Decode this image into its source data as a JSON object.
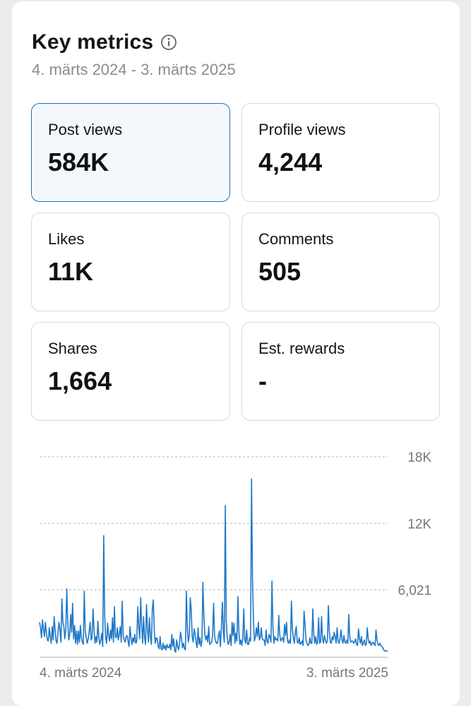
{
  "header": {
    "title": "Key metrics",
    "info_icon": "info-circle-icon",
    "date_range": "4. märts 2024 - 3. märts 2025"
  },
  "metrics": [
    {
      "label": "Post views",
      "value": "584K",
      "selected": true
    },
    {
      "label": "Profile views",
      "value": "4,244",
      "selected": false
    },
    {
      "label": "Likes",
      "value": "11K",
      "selected": false
    },
    {
      "label": "Comments",
      "value": "505",
      "selected": false
    },
    {
      "label": "Shares",
      "value": "1,664",
      "selected": false
    },
    {
      "label": "Est. rewards",
      "value": "-",
      "selected": false
    }
  ],
  "colors": {
    "accent": "#2a6fb3",
    "line": "#1f78c8",
    "selected_bg": "#f3f8fd"
  },
  "chart_data": {
    "type": "line",
    "title": "",
    "xlabel": "",
    "ylabel": "",
    "x_start_label": "4. märts 2024",
    "x_end_label": "3. märts 2025",
    "y_ticks": [
      {
        "value": 18000,
        "label": "18K"
      },
      {
        "value": 12000,
        "label": "12K"
      },
      {
        "value": 6021,
        "label": "6,021"
      }
    ],
    "ylim": [
      0,
      18000
    ],
    "grid": true,
    "series": [
      {
        "values": [
          3100,
          2600,
          1700,
          3300,
          2500,
          1800,
          3100,
          2100,
          1500,
          1400,
          2600,
          1800,
          1200,
          2700,
          1500,
          3600,
          2400,
          1400,
          1200,
          2200,
          3100,
          2400,
          1300,
          5200,
          3100,
          2700,
          1600,
          2500,
          6100,
          3100,
          1500,
          1900,
          3800,
          2200,
          4800,
          1600,
          2800,
          1200,
          2300,
          1100,
          2300,
          1300,
          2800,
          1700,
          1300,
          1100,
          5900,
          2300,
          1700,
          1200,
          1600,
          2200,
          3100,
          1500,
          1700,
          4300,
          2500,
          1200,
          1800,
          1300,
          3200,
          1700,
          1100,
          1500,
          2100,
          900,
          10900,
          3700,
          1700,
          1200,
          3000,
          1900,
          1400,
          2400,
          1600,
          3500,
          1300,
          4500,
          1800,
          1700,
          2600,
          1500,
          2000,
          2700,
          1300,
          5000,
          1900,
          1500,
          1300,
          1800,
          1900,
          1400,
          900,
          2700,
          1700,
          1100,
          1700,
          1300,
          2000,
          1200,
          1400,
          4500,
          2700,
          1600,
          5300,
          2800,
          1200,
          3600,
          1700,
          1100,
          4700,
          2500,
          1300,
          3500,
          1800,
          1100,
          4300,
          5100,
          2300,
          1200,
          1700,
          1600,
          900,
          700,
          1800,
          700,
          600,
          1200,
          700,
          1000,
          600,
          1100,
          800,
          800,
          1100,
          600,
          2000,
          900,
          1600,
          500,
          400,
          1500,
          900,
          600,
          1300,
          2200,
          1600,
          800,
          1200,
          700,
          600,
          5900,
          2500,
          1300,
          1900,
          5300,
          4200,
          1800,
          1300,
          2500,
          2000,
          1300,
          800,
          2600,
          1100,
          1700,
          900,
          1400,
          6700,
          3600,
          2000,
          1500,
          1900,
          1300,
          2700,
          1100,
          1200,
          1300,
          2000,
          4800,
          1800,
          1400,
          1200,
          1200,
          1900,
          2300,
          900,
          2600,
          4900,
          2200,
          1300,
          13600,
          3200,
          1700,
          1100,
          1300,
          2000,
          1000,
          3100,
          1900,
          3000,
          1200,
          2100,
          1400,
          5400,
          2300,
          1100,
          1500,
          1000,
          1600,
          4300,
          1500,
          1200,
          2400,
          1100,
          1100,
          1700,
          1400,
          16000,
          7000,
          3100,
          1400,
          1800,
          2600,
          1800,
          3100,
          1500,
          1700,
          2600,
          1600,
          1500,
          1500,
          1000,
          2400,
          1400,
          1200,
          2000,
          1800,
          1300,
          6800,
          2700,
          1200,
          1800,
          1500,
          1600,
          1400,
          3700,
          2000,
          1400,
          1600,
          1700,
          1300,
          2900,
          1900,
          3100,
          1400,
          1200,
          1500,
          1200,
          5000,
          2500,
          1700,
          1200,
          2200,
          2700,
          1300,
          1200,
          1700,
          1100,
          1200,
          1400,
          1000,
          4100,
          2900,
          1500,
          1200,
          1000,
          1100,
          1700,
          1200,
          1200,
          4300,
          2000,
          1200,
          1800,
          1100,
          1300,
          3500,
          1200,
          1300,
          3600,
          1600,
          1200,
          1900,
          1500,
          1200,
          1400,
          4600,
          2300,
          1300,
          1200,
          1800,
          1500,
          2200,
          1800,
          1200,
          2600,
          1400,
          1200,
          1600,
          2400,
          1500,
          1200,
          1900,
          1300,
          1200,
          1500,
          1200,
          3800,
          1800,
          1300,
          1400,
          1400,
          1200,
          1300,
          1600,
          1100,
          1000,
          2500,
          1600,
          1200,
          1800,
          1000,
          1200,
          1500,
          1000,
          1100,
          2600,
          1600,
          1200,
          1400,
          1000,
          1200,
          1300,
          1100,
          1000,
          2400,
          1500,
          1100,
          1000,
          1200,
          1000,
          900,
          800,
          600,
          500,
          500,
          500,
          500
        ]
      }
    ]
  }
}
